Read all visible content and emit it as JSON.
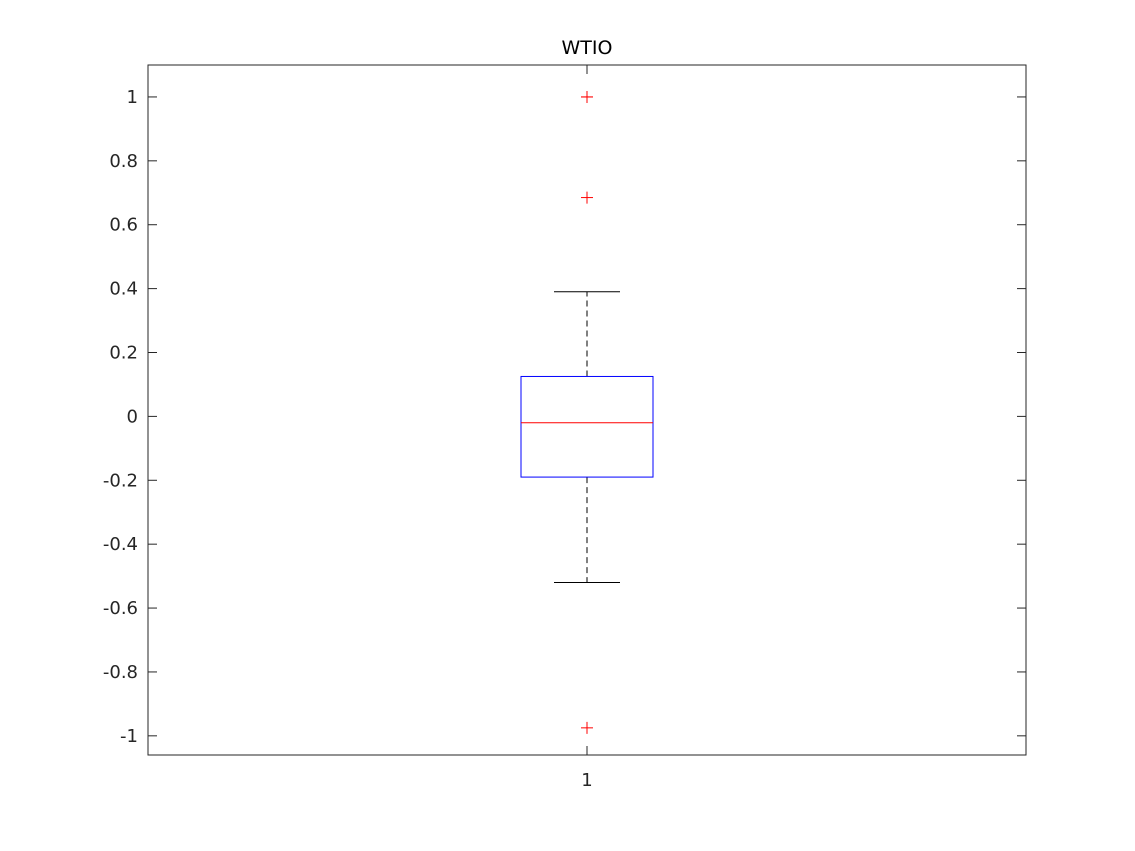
{
  "chart_data": {
    "type": "boxplot",
    "title": "WTIO",
    "xlabel": "",
    "ylabel": "",
    "categories": [
      "1"
    ],
    "ylim": [
      -1.06,
      1.1
    ],
    "yticks": [
      -1,
      -0.8,
      -0.6,
      -0.4,
      -0.2,
      0,
      0.2,
      0.4,
      0.6,
      0.8,
      1
    ],
    "ytick_labels": [
      "-1",
      "-0.8",
      "-0.6",
      "-0.4",
      "-0.2",
      "0",
      "0.2",
      "0.4",
      "0.6",
      "0.8",
      "1"
    ],
    "boxes": [
      {
        "category": "1",
        "q1": -0.19,
        "median": -0.02,
        "q3": 0.125,
        "whisker_low": -0.52,
        "whisker_high": 0.39,
        "outliers": [
          1.0,
          1.0,
          0.685,
          -0.975
        ]
      }
    ],
    "grid": false,
    "colors": {
      "box": "#0000ff",
      "median": "#ff0000",
      "whisker": "#000000",
      "outlier": "#ff0000",
      "axes": "#262626"
    }
  }
}
